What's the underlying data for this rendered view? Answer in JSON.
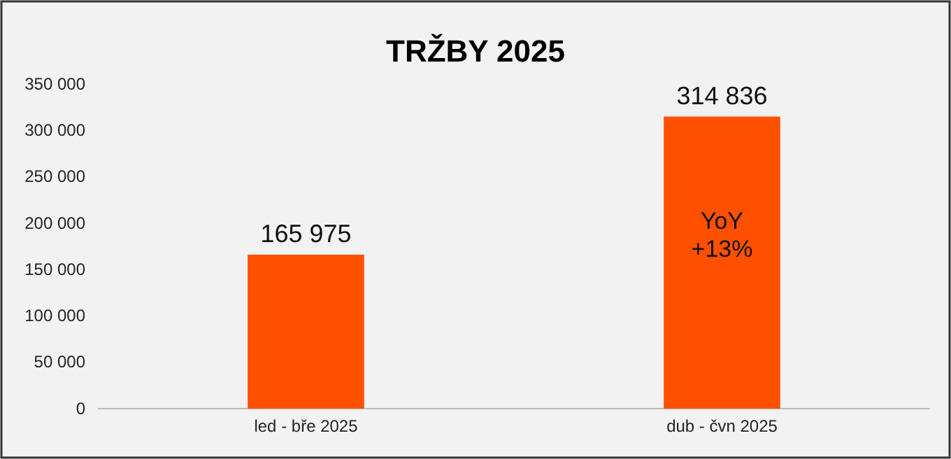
{
  "chart_data": {
    "type": "bar",
    "title": "TRŽBY 2025",
    "categories": [
      "led - bře 2025",
      "dub - čvn 2025"
    ],
    "values": [
      165975,
      314836
    ],
    "color": "#ff5000",
    "value_labels": [
      "165 975",
      "314 836"
    ],
    "ylim": [
      0,
      350000
    ],
    "yticks": [
      0,
      {
        "value": 50000,
        "label": "50 000"
      },
      {
        "value": 100000,
        "label": "100 000"
      },
      {
        "value": 150000,
        "label": "150 000"
      },
      {
        "value": 200000,
        "label": "200 000"
      },
      {
        "value": 250000,
        "label": "250 000"
      },
      {
        "value": 300000,
        "label": "300 000"
      },
      {
        "value": 350000,
        "label": "350 000"
      }
    ],
    "grid": false,
    "annotations": [
      "YoY\n+13%"
    ]
  }
}
